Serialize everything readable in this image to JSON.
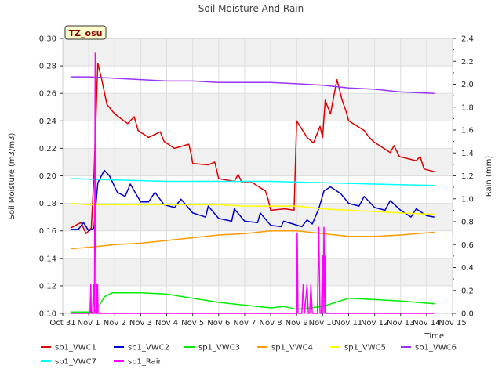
{
  "chart_data": {
    "type": "line",
    "title": "Soil Moisture And Rain",
    "xlabel": "Time",
    "ylabel": "Soil Moisture (m3/m3)",
    "y2label": "Rain (mm)",
    "site_badge": "TZ_osu",
    "ylim": [
      0.1,
      0.3
    ],
    "y2lim": [
      0.0,
      2.4
    ],
    "xlim": [
      0,
      15
    ],
    "x_unit": "days since Oct 31",
    "x_ticks": [
      "Oct 31",
      "Nov 1",
      "Nov 2",
      "Nov 3",
      "Nov 4",
      "Nov 5",
      "Nov 6",
      "Nov 7",
      "Nov 8",
      "Nov 9",
      "Nov 10",
      "Nov 11",
      "Nov 12",
      "Nov 13",
      "Nov 14",
      "Nov 15"
    ],
    "y_ticks": [
      "0.10",
      "0.12",
      "0.14",
      "0.16",
      "0.18",
      "0.20",
      "0.22",
      "0.24",
      "0.26",
      "0.28",
      "0.30"
    ],
    "y2_ticks": [
      "0.0",
      "0.2",
      "0.4",
      "0.6",
      "0.8",
      "1.0",
      "1.2",
      "1.4",
      "1.6",
      "1.8",
      "2.0",
      "2.2",
      "2.4"
    ],
    "grid": true,
    "legend_position": "bottom",
    "series": [
      {
        "name": "sp1_VWC1",
        "color": "#dd0000",
        "axis": "left",
        "x": [
          0.3,
          0.7,
          0.9,
          1.1,
          1.2,
          1.35,
          1.5,
          1.7,
          2.0,
          2.5,
          2.75,
          2.9,
          3.3,
          3.75,
          3.9,
          4.3,
          4.85,
          4.95,
          5.0,
          5.6,
          5.85,
          6.0,
          6.6,
          6.75,
          6.9,
          7.3,
          7.8,
          7.9,
          8.0,
          8.55,
          8.9,
          9.0,
          9.1,
          9.4,
          9.65,
          9.9,
          10.0,
          10.1,
          10.3,
          10.55,
          10.75,
          10.9,
          11.0,
          11.6,
          11.75,
          11.95,
          12.6,
          12.75,
          12.95,
          13.6,
          13.75,
          13.9,
          14.3
        ],
        "y": [
          0.162,
          0.166,
          0.158,
          0.162,
          0.2,
          0.282,
          0.27,
          0.252,
          0.245,
          0.238,
          0.243,
          0.233,
          0.228,
          0.232,
          0.225,
          0.22,
          0.223,
          0.215,
          0.209,
          0.208,
          0.21,
          0.198,
          0.196,
          0.201,
          0.195,
          0.195,
          0.189,
          0.183,
          0.175,
          0.176,
          0.175,
          0.24,
          0.237,
          0.228,
          0.224,
          0.236,
          0.228,
          0.255,
          0.245,
          0.27,
          0.255,
          0.247,
          0.24,
          0.233,
          0.229,
          0.225,
          0.217,
          0.222,
          0.214,
          0.211,
          0.214,
          0.205,
          0.203
        ]
      },
      {
        "name": "sp1_VWC2",
        "color": "#0000cc",
        "axis": "left",
        "x": [
          0.3,
          0.6,
          0.8,
          1.0,
          1.2,
          1.35,
          1.6,
          1.8,
          2.1,
          2.4,
          2.6,
          3.0,
          3.3,
          3.55,
          3.9,
          4.3,
          4.55,
          5.0,
          5.5,
          5.6,
          6.0,
          6.5,
          6.6,
          7.0,
          7.5,
          7.6,
          8.0,
          8.4,
          8.5,
          8.85,
          9.2,
          9.4,
          9.6,
          9.85,
          10.05,
          10.3,
          10.7,
          11.0,
          11.4,
          11.6,
          12.0,
          12.4,
          12.6,
          13.0,
          13.4,
          13.6,
          14.0,
          14.3
        ],
        "y": [
          0.161,
          0.161,
          0.166,
          0.16,
          0.162,
          0.195,
          0.204,
          0.2,
          0.188,
          0.185,
          0.194,
          0.181,
          0.181,
          0.188,
          0.179,
          0.177,
          0.183,
          0.173,
          0.17,
          0.178,
          0.169,
          0.167,
          0.176,
          0.167,
          0.166,
          0.173,
          0.164,
          0.163,
          0.167,
          0.165,
          0.163,
          0.168,
          0.165,
          0.176,
          0.189,
          0.192,
          0.187,
          0.18,
          0.178,
          0.185,
          0.177,
          0.175,
          0.182,
          0.175,
          0.17,
          0.176,
          0.171,
          0.17
        ]
      },
      {
        "name": "sp1_VWC3",
        "color": "#00ee00",
        "axis": "left",
        "x": [
          0.3,
          1.0,
          1.2,
          1.35,
          1.6,
          1.9,
          2.5,
          3.0,
          4.0,
          5.0,
          6.0,
          7.0,
          8.0,
          8.5,
          9.0,
          9.5,
          10.0,
          10.5,
          11.0,
          12.0,
          13.0,
          14.3
        ],
        "y": [
          0.101,
          0.101,
          0.101,
          0.104,
          0.112,
          0.115,
          0.115,
          0.115,
          0.114,
          0.111,
          0.108,
          0.106,
          0.104,
          0.105,
          0.103,
          0.104,
          0.105,
          0.108,
          0.111,
          0.11,
          0.109,
          0.107
        ]
      },
      {
        "name": "sp1_VWC4",
        "color": "#ff9900",
        "axis": "left",
        "x": [
          0.3,
          1.0,
          2.0,
          3.0,
          4.0,
          5.0,
          6.0,
          7.0,
          8.0,
          9.0,
          10.0,
          11.0,
          12.0,
          13.0,
          14.3
        ],
        "y": [
          0.147,
          0.148,
          0.15,
          0.151,
          0.153,
          0.155,
          0.157,
          0.158,
          0.16,
          0.16,
          0.158,
          0.156,
          0.156,
          0.157,
          0.159
        ]
      },
      {
        "name": "sp1_VWC5",
        "color": "#ffff00",
        "axis": "left",
        "x": [
          0.3,
          1.0,
          2.0,
          3.0,
          4.0,
          5.0,
          6.0,
          7.0,
          8.0,
          9.0,
          10.0,
          11.0,
          12.0,
          13.0,
          14.3
        ],
        "y": [
          0.18,
          0.179,
          0.179,
          0.179,
          0.179,
          0.179,
          0.179,
          0.178,
          0.178,
          0.178,
          0.176,
          0.175,
          0.174,
          0.173,
          0.172
        ]
      },
      {
        "name": "sp1_VWC6",
        "color": "#9933ff",
        "axis": "left",
        "x": [
          0.3,
          1.0,
          2.0,
          3.0,
          4.0,
          5.0,
          6.0,
          7.0,
          8.0,
          9.0,
          10.0,
          11.0,
          12.0,
          13.0,
          14.3
        ],
        "y": [
          0.272,
          0.272,
          0.271,
          0.27,
          0.269,
          0.269,
          0.268,
          0.268,
          0.268,
          0.267,
          0.266,
          0.264,
          0.263,
          0.261,
          0.26
        ]
      },
      {
        "name": "sp1_VWC7",
        "color": "#00ffff",
        "axis": "left",
        "x": [
          0.3,
          2.0,
          4.0,
          6.0,
          8.0,
          10.0,
          12.0,
          14.3
        ],
        "y": [
          0.198,
          0.197,
          0.196,
          0.196,
          0.196,
          0.195,
          0.194,
          0.193
        ]
      },
      {
        "name": "sp1_Rain",
        "color": "#ff00ff",
        "axis": "right",
        "x": [
          0.3,
          1.05,
          1.08,
          1.1,
          1.15,
          1.18,
          1.22,
          1.25,
          1.28,
          1.3,
          1.32,
          1.34,
          1.36,
          1.38,
          8.8,
          9.0,
          9.02,
          9.05,
          9.08,
          9.1,
          9.2,
          9.25,
          9.3,
          9.4,
          9.45,
          9.5,
          9.55,
          9.6,
          9.7,
          9.8,
          9.85,
          9.9,
          9.95,
          10.0,
          10.02,
          10.05,
          10.08,
          10.1,
          10.12,
          10.15,
          10.18,
          10.2,
          10.3,
          14.3
        ],
        "y": [
          0.0,
          0.0,
          0.25,
          0.0,
          0.0,
          0.25,
          0.0,
          2.27,
          0.0,
          0.25,
          0.0,
          0.25,
          0.0,
          0.0,
          0.0,
          0.0,
          0.7,
          0.0,
          0.0,
          0.0,
          0.0,
          0.25,
          0.0,
          0.25,
          0.0,
          0.0,
          0.25,
          0.0,
          0.0,
          0.0,
          0.75,
          0.0,
          0.0,
          0.5,
          0.0,
          0.75,
          0.0,
          0.5,
          0.0,
          0.0,
          0.0,
          0.0,
          0.0,
          0.0
        ]
      }
    ]
  }
}
